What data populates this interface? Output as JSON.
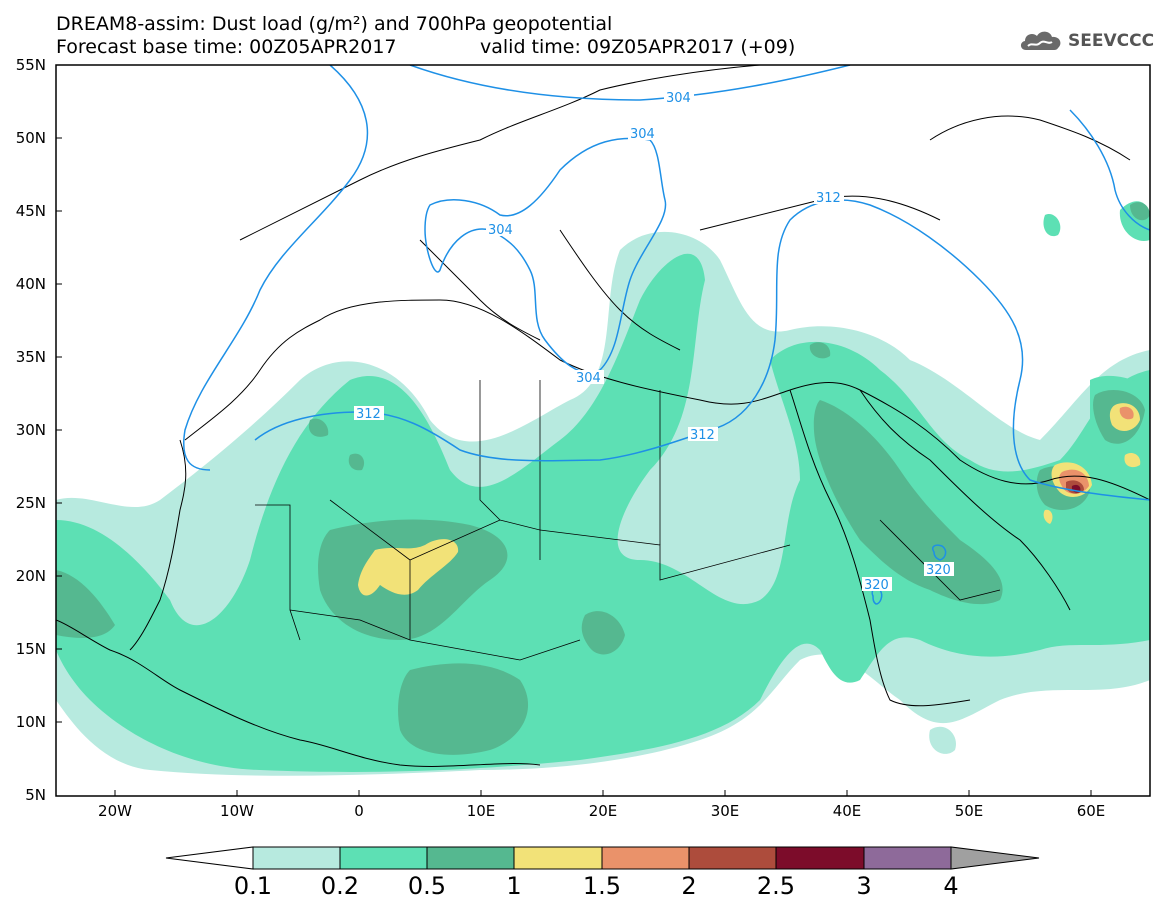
{
  "title": {
    "line1": "DREAM8-assim: Dust load (g/m²) and 700hPa geopotential",
    "line2": "Forecast base time: 00Z05APR2017",
    "valid": "valid time: 09Z05APR2017 (+09)"
  },
  "logo": {
    "text": "SEEVCCC",
    "icon": "cloud-icon"
  },
  "axes": {
    "lat_labels": [
      "55N",
      "50N",
      "45N",
      "40N",
      "35N",
      "30N",
      "25N",
      "20N",
      "15N",
      "10N",
      "5N"
    ],
    "lon_labels": [
      "20W",
      "10W",
      "0",
      "10E",
      "20E",
      "30E",
      "40E",
      "50E",
      "60E"
    ]
  },
  "contour_labels": [
    {
      "text": "304"
    },
    {
      "text": "304"
    },
    {
      "text": "304"
    },
    {
      "text": "304"
    },
    {
      "text": "312"
    },
    {
      "text": "312"
    },
    {
      "text": "312"
    },
    {
      "text": "320"
    },
    {
      "text": "320"
    }
  ],
  "colorbar": {
    "labels": [
      "0.1",
      "0.2",
      "0.5",
      "1",
      "1.5",
      "2",
      "2.5",
      "3",
      "4"
    ],
    "colors": [
      "#ffffff",
      "#b7eadf",
      "#5de0b4",
      "#55b890",
      "#f2e278",
      "#ea926a",
      "#ad4c3c",
      "#7c0c2a",
      "#8e6a9a",
      "#a0a0a0"
    ]
  },
  "palette": {
    "dust_0_1": "#b7eadf",
    "dust_0_2": "#5de0b4",
    "dust_0_5": "#55b890",
    "dust_1": "#f2e278",
    "dust_1_5": "#ea926a",
    "dust_2": "#ad4c3c",
    "dust_2_5": "#7c0c2a",
    "contour": "#1e90e6"
  }
}
